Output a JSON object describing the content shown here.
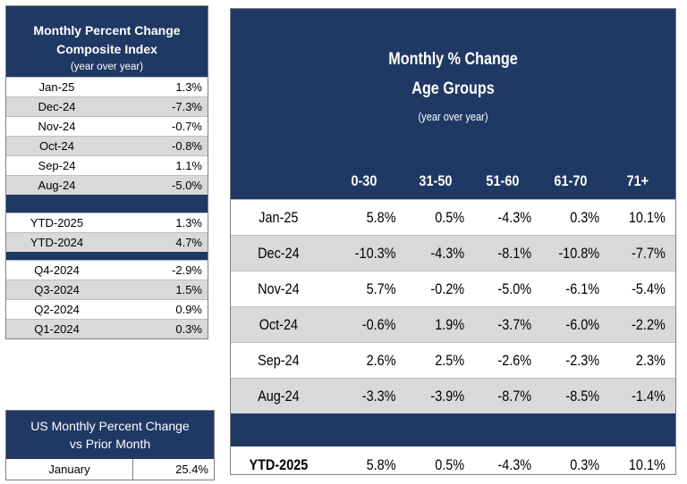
{
  "composite": {
    "title_line1": "Monthly Percent Change",
    "title_line2": "Composite Index",
    "subtitle": "(year over year)",
    "months": [
      {
        "label": "Jan-25",
        "value": "1.3%"
      },
      {
        "label": "Dec-24",
        "value": "-7.3%"
      },
      {
        "label": "Nov-24",
        "value": "-0.7%"
      },
      {
        "label": "Oct-24",
        "value": "-0.8%"
      },
      {
        "label": "Sep-24",
        "value": "1.1%"
      },
      {
        "label": "Aug-24",
        "value": "-5.0%"
      }
    ],
    "ytd": [
      {
        "label": "YTD-2025",
        "value": "1.3%"
      },
      {
        "label": "YTD-2024",
        "value": "4.7%"
      }
    ],
    "quarters": [
      {
        "label": "Q4-2024",
        "value": "-2.9%"
      },
      {
        "label": "Q3-2024",
        "value": "1.5%"
      },
      {
        "label": "Q2-2024",
        "value": "0.9%"
      },
      {
        "label": "Q1-2024",
        "value": "0.3%"
      }
    ]
  },
  "us_monthly": {
    "title_line1": "US Monthly Percent Change",
    "title_line2": "vs Prior Month",
    "label": "January",
    "value": "25.4%"
  },
  "age_groups": {
    "title_line1": "Monthly % Change",
    "title_line2": "Age Groups",
    "subtitle": "(year over year)",
    "columns": [
      "0-30",
      "31-50",
      "51-60",
      "61-70",
      "71+"
    ],
    "rows": [
      {
        "label": "Jan-25",
        "values": [
          "5.8%",
          "0.5%",
          "-4.3%",
          "0.3%",
          "10.1%"
        ]
      },
      {
        "label": "Dec-24",
        "values": [
          "-10.3%",
          "-4.3%",
          "-8.1%",
          "-10.8%",
          "-7.7%"
        ]
      },
      {
        "label": "Nov-24",
        "values": [
          "5.7%",
          "-0.2%",
          "-5.0%",
          "-6.1%",
          "-5.4%"
        ]
      },
      {
        "label": "Oct-24",
        "values": [
          "-0.6%",
          "1.9%",
          "-3.7%",
          "-6.0%",
          "-2.2%"
        ]
      },
      {
        "label": "Sep-24",
        "values": [
          "2.6%",
          "2.5%",
          "-2.6%",
          "-2.3%",
          "2.3%"
        ]
      },
      {
        "label": "Aug-24",
        "values": [
          "-3.3%",
          "-3.9%",
          "-8.7%",
          "-8.5%",
          "-1.4%"
        ]
      }
    ],
    "ytd": {
      "label": "YTD-2025",
      "values": [
        "5.8%",
        "0.5%",
        "-4.3%",
        "0.3%",
        "10.1%"
      ]
    }
  },
  "colors": {
    "header_navy": "#203864",
    "stripe_grey": "#d9d9d9"
  }
}
